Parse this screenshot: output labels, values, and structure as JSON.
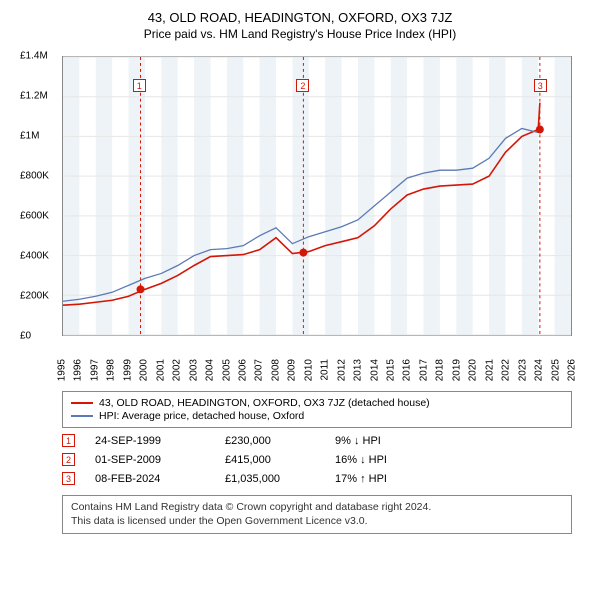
{
  "title": "43, OLD ROAD, HEADINGTON, OXFORD, OX3 7JZ",
  "subtitle": "Price paid vs. HM Land Registry's House Price Index (HPI)",
  "chart": {
    "type": "line",
    "ylim": [
      0,
      1400000
    ],
    "ytick_step": 200000,
    "ylabels": [
      "£0",
      "£200K",
      "£400K",
      "£600K",
      "£800K",
      "£1M",
      "£1.2M",
      "£1.4M"
    ],
    "x_years": [
      1995,
      1996,
      1997,
      1998,
      1999,
      2000,
      2001,
      2002,
      2003,
      2004,
      2005,
      2006,
      2007,
      2008,
      2009,
      2010,
      2011,
      2012,
      2013,
      2014,
      2015,
      2016,
      2017,
      2018,
      2019,
      2020,
      2021,
      2022,
      2023,
      2024,
      2025,
      2026
    ],
    "background_color": "#ffffff",
    "altband_color": "#eef3f7",
    "grid_color": "#e6e6e6",
    "series": [
      {
        "name": "price_paid",
        "color": "#d41606",
        "width": 1.6,
        "x": [
          1995,
          1996,
          1997,
          1998,
          1999,
          2000,
          2001,
          2002,
          2003,
          2004,
          2005,
          2006,
          2007,
          2008,
          2009,
          2010,
          2011,
          2012,
          2013,
          2014,
          2015,
          2016,
          2017,
          2018,
          2019,
          2020,
          2021,
          2022,
          2023,
          2024,
          2024.1
        ],
        "y": [
          150000,
          155000,
          165000,
          175000,
          195000,
          230000,
          260000,
          300000,
          350000,
          395000,
          400000,
          405000,
          430000,
          490000,
          410000,
          420000,
          450000,
          470000,
          490000,
          550000,
          635000,
          705000,
          735000,
          750000,
          755000,
          760000,
          800000,
          920000,
          1000000,
          1035000,
          1170000
        ]
      },
      {
        "name": "hpi",
        "color": "#5b7ab5",
        "width": 1.3,
        "x": [
          1995,
          1996,
          1997,
          1998,
          1999,
          2000,
          2001,
          2002,
          2003,
          2004,
          2005,
          2006,
          2007,
          2008,
          2009,
          2010,
          2011,
          2012,
          2013,
          2014,
          2015,
          2016,
          2017,
          2018,
          2019,
          2020,
          2021,
          2022,
          2023,
          2024
        ],
        "y": [
          170000,
          180000,
          195000,
          215000,
          250000,
          285000,
          310000,
          350000,
          400000,
          430000,
          435000,
          450000,
          500000,
          540000,
          460000,
          495000,
          520000,
          545000,
          580000,
          650000,
          720000,
          790000,
          815000,
          830000,
          830000,
          840000,
          890000,
          990000,
          1040000,
          1020000
        ]
      }
    ],
    "markers": [
      {
        "n": "1",
        "x": 1999.73,
        "y_box": 1250000,
        "color": "#d41606",
        "dot_y": 230000
      },
      {
        "n": "2",
        "x": 2009.67,
        "y_box": 1250000,
        "color": "#d41606",
        "dot_y": 415000
      },
      {
        "n": "3",
        "x": 2024.1,
        "y_box": 1250000,
        "color": "#d41606",
        "dot_y": 1035000
      }
    ]
  },
  "legend": {
    "items": [
      {
        "color": "#d41606",
        "label": "43, OLD ROAD, HEADINGTON, OXFORD, OX3 7JZ (detached house)"
      },
      {
        "color": "#5b7ab5",
        "label": "HPI: Average price, detached house, Oxford"
      }
    ]
  },
  "sales": [
    {
      "n": "1",
      "color": "#d41606",
      "date": "24-SEP-1999",
      "price": "£230,000",
      "diff": "9% ↓ HPI"
    },
    {
      "n": "2",
      "color": "#d41606",
      "date": "01-SEP-2009",
      "price": "£415,000",
      "diff": "16% ↓ HPI"
    },
    {
      "n": "3",
      "color": "#d41606",
      "date": "08-FEB-2024",
      "price": "£1,035,000",
      "diff": "17% ↑ HPI"
    }
  ],
  "footer": {
    "line1": "Contains HM Land Registry data © Crown copyright and database right 2024.",
    "line2": "This data is licensed under the Open Government Licence v3.0."
  }
}
